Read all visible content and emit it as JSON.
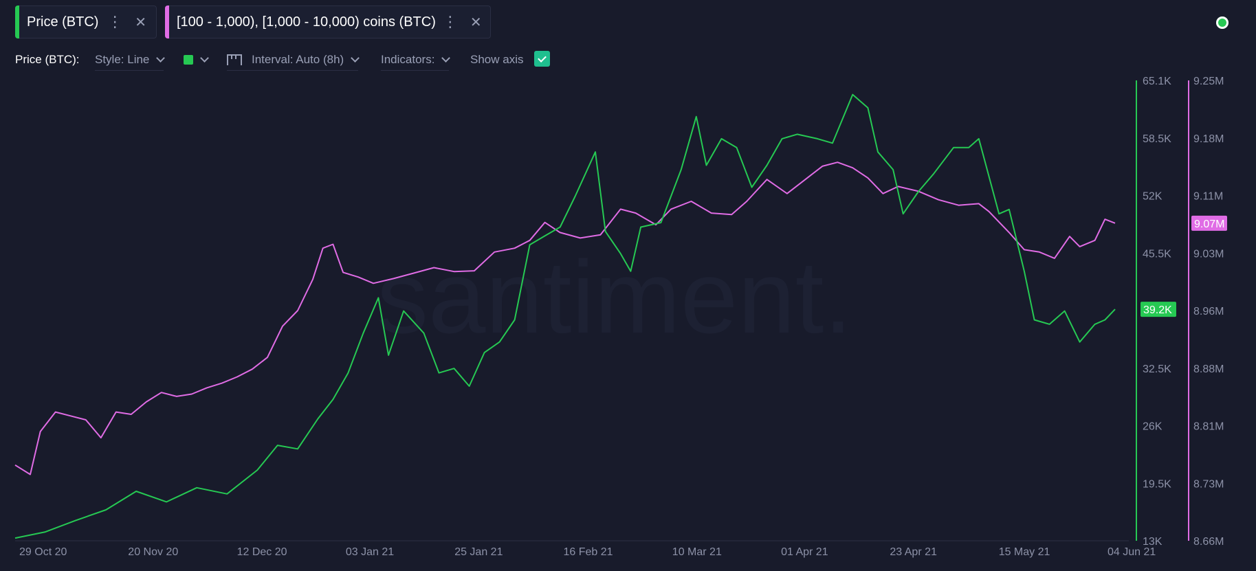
{
  "tabs": [
    {
      "label": "Price (BTC)",
      "color": "#26c953"
    },
    {
      "label": "[100 - 1,000), [1,000 - 10,000) coins (BTC)",
      "color": "#e06ce5"
    }
  ],
  "toolbar": {
    "metric_label": "Price (BTC):",
    "style_label": "Style: Line",
    "interval_label": "Interval: Auto (8h)",
    "indicators_label": "Indicators:",
    "show_axis_label": "Show axis",
    "show_axis_checked": true
  },
  "watermark": "santiment.",
  "icons": {
    "menu": "vertical-dots-icon",
    "close": "close-icon",
    "status": "status-dot-icon",
    "interval": "calendar-icon"
  },
  "chart_data": {
    "type": "line",
    "x_ticks": [
      "29 Oct 20",
      "20 Nov 20",
      "12 Dec 20",
      "03 Jan 21",
      "25 Jan 21",
      "16 Feb 21",
      "10 Mar 21",
      "01 Apr 21",
      "23 Apr 21",
      "15 May 21",
      "04 Jun 21"
    ],
    "series": [
      {
        "name": "Price (BTC)",
        "color": "#26c953",
        "axis_ticks": [
          "65.1K",
          "58.5K",
          "52K",
          "45.5K",
          "39.2K",
          "32.5K",
          "26K",
          "19.5K",
          "13K"
        ],
        "ylim": [
          13000,
          65100
        ],
        "last_value_label": "39.2K",
        "points": [
          [
            "29 Oct 20",
            13300
          ],
          [
            "04 Nov 20",
            14000
          ],
          [
            "10 Nov 20",
            15300
          ],
          [
            "16 Nov 20",
            16500
          ],
          [
            "22 Nov 20",
            18600
          ],
          [
            "28 Nov 20",
            17400
          ],
          [
            "04 Dec 20",
            19000
          ],
          [
            "10 Dec 20",
            18300
          ],
          [
            "16 Dec 20",
            21000
          ],
          [
            "20 Dec 20",
            23800
          ],
          [
            "24 Dec 20",
            23400
          ],
          [
            "28 Dec 20",
            26800
          ],
          [
            "31 Dec 20",
            29000
          ],
          [
            "03 Jan 21",
            32000
          ],
          [
            "06 Jan 21",
            36500
          ],
          [
            "09 Jan 21",
            40500
          ],
          [
            "11 Jan 21",
            34000
          ],
          [
            "14 Jan 21",
            39000
          ],
          [
            "18 Jan 21",
            36500
          ],
          [
            "21 Jan 21",
            32000
          ],
          [
            "24 Jan 21",
            32500
          ],
          [
            "27 Jan 21",
            30500
          ],
          [
            "30 Jan 21",
            34300
          ],
          [
            "02 Feb 21",
            35500
          ],
          [
            "05 Feb 21",
            38000
          ],
          [
            "08 Feb 21",
            46500
          ],
          [
            "11 Feb 21",
            47500
          ],
          [
            "14 Feb 21",
            48500
          ],
          [
            "17 Feb 21",
            52000
          ],
          [
            "21 Feb 21",
            57000
          ],
          [
            "23 Feb 21",
            48000
          ],
          [
            "26 Feb 21",
            45500
          ],
          [
            "28 Feb 21",
            43500
          ],
          [
            "02 Mar 21",
            48500
          ],
          [
            "06 Mar 21",
            49000
          ],
          [
            "10 Mar 21",
            55000
          ],
          [
            "13 Mar 21",
            61000
          ],
          [
            "15 Mar 21",
            55500
          ],
          [
            "18 Mar 21",
            58500
          ],
          [
            "21 Mar 21",
            57500
          ],
          [
            "24 Mar 21",
            53000
          ],
          [
            "27 Mar 21",
            55500
          ],
          [
            "30 Mar 21",
            58500
          ],
          [
            "02 Apr 21",
            59000
          ],
          [
            "06 Apr 21",
            58500
          ],
          [
            "09 Apr 21",
            58000
          ],
          [
            "13 Apr 21",
            63500
          ],
          [
            "16 Apr 21",
            62000
          ],
          [
            "18 Apr 21",
            57000
          ],
          [
            "21 Apr 21",
            55000
          ],
          [
            "23 Apr 21",
            50000
          ],
          [
            "26 Apr 21",
            52500
          ],
          [
            "29 Apr 21",
            54500
          ],
          [
            "03 May 21",
            57500
          ],
          [
            "06 May 21",
            57500
          ],
          [
            "08 May 21",
            58500
          ],
          [
            "12 May 21",
            50000
          ],
          [
            "14 May 21",
            50500
          ],
          [
            "17 May 21",
            43500
          ],
          [
            "19 May 21",
            38000
          ],
          [
            "22 May 21",
            37500
          ],
          [
            "25 May 21",
            39000
          ],
          [
            "28 May 21",
            35500
          ],
          [
            "31 May 21",
            37500
          ],
          [
            "02 Jun 21",
            38000
          ],
          [
            "04 Jun 21",
            39200
          ]
        ]
      },
      {
        "name": "[100 - 1,000), [1,000 - 10,000) coins (BTC)",
        "color": "#e06ce5",
        "axis_ticks": [
          "9.25M",
          "9.18M",
          "9.11M",
          "9.03M",
          "8.96M",
          "8.88M",
          "8.81M",
          "8.73M",
          "8.66M"
        ],
        "ylim": [
          8660000,
          9250000
        ],
        "last_value_label": "9.07M",
        "points": [
          [
            "29 Oct 20",
            8757000
          ],
          [
            "01 Nov 20",
            8745000
          ],
          [
            "03 Nov 20",
            8800000
          ],
          [
            "06 Nov 20",
            8825000
          ],
          [
            "09 Nov 20",
            8820000
          ],
          [
            "12 Nov 20",
            8815000
          ],
          [
            "15 Nov 20",
            8792000
          ],
          [
            "18 Nov 20",
            8825000
          ],
          [
            "21 Nov 20",
            8822000
          ],
          [
            "24 Nov 20",
            8838000
          ],
          [
            "27 Nov 20",
            8850000
          ],
          [
            "30 Nov 20",
            8845000
          ],
          [
            "03 Dec 20",
            8848000
          ],
          [
            "06 Dec 20",
            8856000
          ],
          [
            "09 Dec 20",
            8862000
          ],
          [
            "12 Dec 20",
            8870000
          ],
          [
            "15 Dec 20",
            8880000
          ],
          [
            "18 Dec 20",
            8895000
          ],
          [
            "21 Dec 20",
            8935000
          ],
          [
            "24 Dec 20",
            8955000
          ],
          [
            "27 Dec 20",
            8995000
          ],
          [
            "29 Dec 20",
            9035000
          ],
          [
            "31 Dec 20",
            9040000
          ],
          [
            "02 Jan 21",
            9004000
          ],
          [
            "05 Jan 21",
            8998000
          ],
          [
            "08 Jan 21",
            8990000
          ],
          [
            "12 Jan 21",
            8996000
          ],
          [
            "16 Jan 21",
            9003000
          ],
          [
            "20 Jan 21",
            9010000
          ],
          [
            "24 Jan 21",
            9005000
          ],
          [
            "28 Jan 21",
            9006000
          ],
          [
            "01 Feb 21",
            9030000
          ],
          [
            "05 Feb 21",
            9035000
          ],
          [
            "08 Feb 21",
            9045000
          ],
          [
            "11 Feb 21",
            9068000
          ],
          [
            "14 Feb 21",
            9055000
          ],
          [
            "18 Feb 21",
            9048000
          ],
          [
            "22 Feb 21",
            9052000
          ],
          [
            "26 Feb 21",
            9085000
          ],
          [
            "01 Mar 21",
            9080000
          ],
          [
            "05 Mar 21",
            9065000
          ],
          [
            "08 Mar 21",
            9085000
          ],
          [
            "12 Mar 21",
            9095000
          ],
          [
            "16 Mar 21",
            9080000
          ],
          [
            "20 Mar 21",
            9078000
          ],
          [
            "23 Mar 21",
            9095000
          ],
          [
            "27 Mar 21",
            9123000
          ],
          [
            "31 Mar 21",
            9105000
          ],
          [
            "04 Apr 21",
            9125000
          ],
          [
            "07 Apr 21",
            9140000
          ],
          [
            "10 Apr 21",
            9145000
          ],
          [
            "13 Apr 21",
            9138000
          ],
          [
            "16 Apr 21",
            9125000
          ],
          [
            "19 Apr 21",
            9105000
          ],
          [
            "22 Apr 21",
            9114000
          ],
          [
            "26 Apr 21",
            9108000
          ],
          [
            "30 Apr 21",
            9097000
          ],
          [
            "04 May 21",
            9090000
          ],
          [
            "08 May 21",
            9092000
          ],
          [
            "10 May 21",
            9082000
          ],
          [
            "14 May 21",
            9055000
          ],
          [
            "17 May 21",
            9033000
          ],
          [
            "20 May 21",
            9030000
          ],
          [
            "23 May 21",
            9022000
          ],
          [
            "26 May 21",
            9050000
          ],
          [
            "28 May 21",
            9037000
          ],
          [
            "31 May 21",
            9045000
          ],
          [
            "02 Jun 21",
            9072000
          ],
          [
            "04 Jun 21",
            9067000
          ]
        ]
      }
    ]
  }
}
